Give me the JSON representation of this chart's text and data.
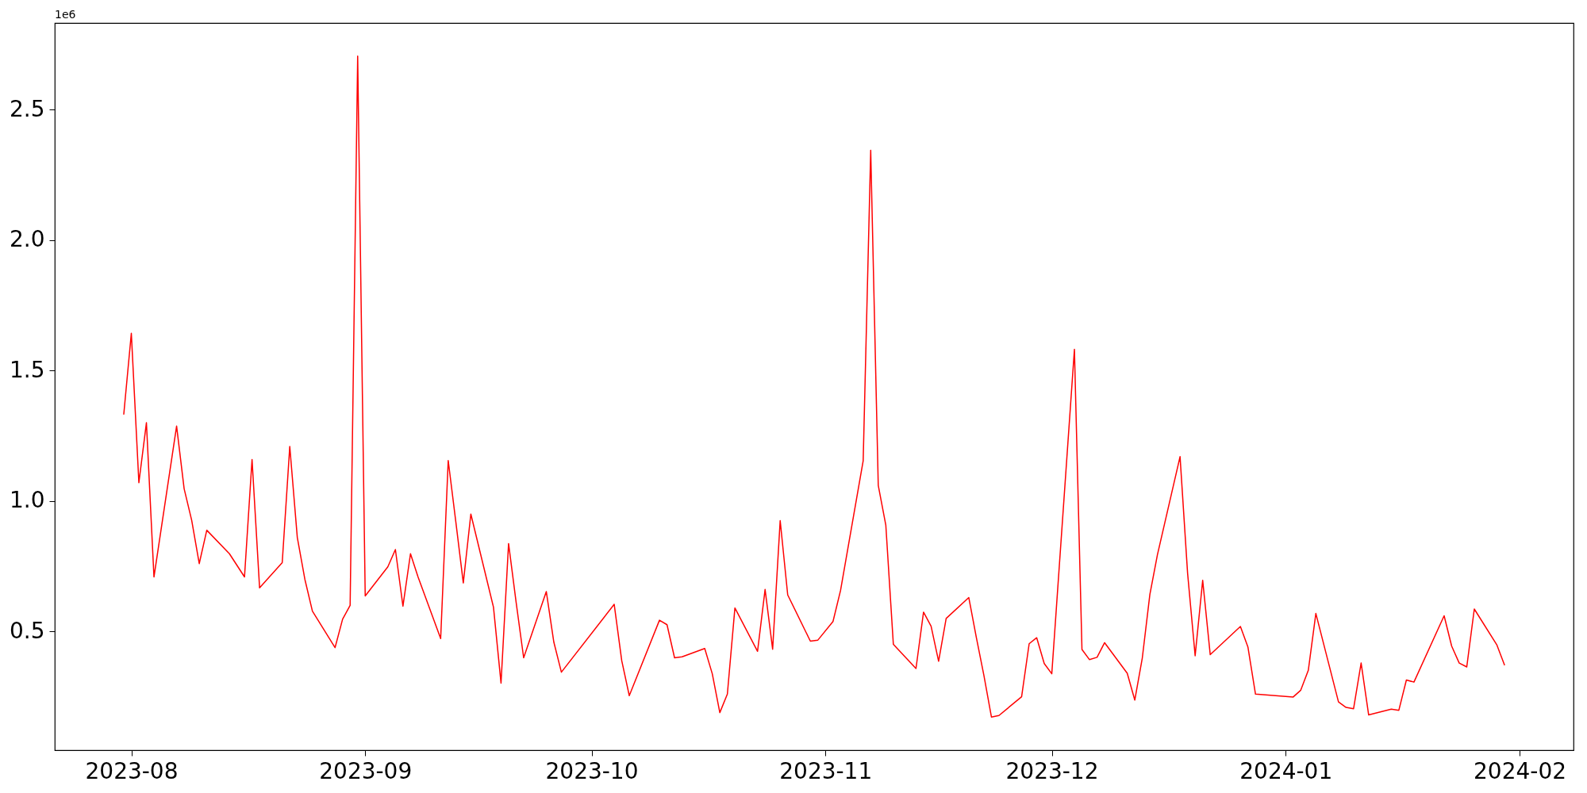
{
  "chart_data": {
    "type": "line",
    "annotations": [
      "1e6"
    ],
    "x": [
      "2023-07-31",
      "2023-08-01",
      "2023-08-02",
      "2023-08-03",
      "2023-08-04",
      "2023-08-07",
      "2023-08-08",
      "2023-08-09",
      "2023-08-10",
      "2023-08-11",
      "2023-08-14",
      "2023-08-16",
      "2023-08-17",
      "2023-08-18",
      "2023-08-21",
      "2023-08-22",
      "2023-08-23",
      "2023-08-24",
      "2023-08-25",
      "2023-08-28",
      "2023-08-29",
      "2023-08-30",
      "2023-08-31",
      "2023-09-01",
      "2023-09-04",
      "2023-09-05",
      "2023-09-06",
      "2023-09-07",
      "2023-09-08",
      "2023-09-11",
      "2023-09-12",
      "2023-09-13",
      "2023-09-14",
      "2023-09-15",
      "2023-09-18",
      "2023-09-19",
      "2023-09-20",
      "2023-09-21",
      "2023-09-22",
      "2023-09-25",
      "2023-09-26",
      "2023-09-27",
      "2023-10-04",
      "2023-10-05",
      "2023-10-06",
      "2023-10-10",
      "2023-10-11",
      "2023-10-12",
      "2023-10-13",
      "2023-10-16",
      "2023-10-17",
      "2023-10-18",
      "2023-10-19",
      "2023-10-20",
      "2023-10-23",
      "2023-10-24",
      "2023-10-25",
      "2023-10-26",
      "2023-10-27",
      "2023-10-30",
      "2023-10-31",
      "2023-11-02",
      "2023-11-03",
      "2023-11-06",
      "2023-11-07",
      "2023-11-08",
      "2023-11-09",
      "2023-11-10",
      "2023-11-13",
      "2023-11-14",
      "2023-11-15",
      "2023-11-16",
      "2023-11-17",
      "2023-11-20",
      "2023-11-21",
      "2023-11-22",
      "2023-11-23",
      "2023-11-24",
      "2023-11-27",
      "2023-11-28",
      "2023-11-29",
      "2023-11-30",
      "2023-12-01",
      "2023-12-04",
      "2023-12-05",
      "2023-12-06",
      "2023-12-07",
      "2023-12-08",
      "2023-12-11",
      "2023-12-12",
      "2023-12-13",
      "2023-12-14",
      "2023-12-15",
      "2023-12-18",
      "2023-12-19",
      "2023-12-20",
      "2023-12-21",
      "2023-12-22",
      "2023-12-26",
      "2023-12-27",
      "2023-12-28",
      "2024-01-02",
      "2024-01-03",
      "2024-01-04",
      "2024-01-05",
      "2024-01-08",
      "2024-01-09",
      "2024-01-10",
      "2024-01-11",
      "2024-01-12",
      "2024-01-15",
      "2024-01-16",
      "2024-01-17",
      "2024-01-18",
      "2024-01-22",
      "2024-01-23",
      "2024-01-24",
      "2024-01-25",
      "2024-01-26",
      "2024-01-29",
      "2024-01-30"
    ],
    "series": [
      {
        "color": "#ff0000",
        "values": [
          1.333,
          1.643,
          1.07,
          1.3,
          0.709,
          1.287,
          1.047,
          0.926,
          0.76,
          0.888,
          0.798,
          0.709,
          1.159,
          0.667,
          0.764,
          1.209,
          0.86,
          0.7,
          0.578,
          0.438,
          0.547,
          0.6,
          2.705,
          0.636,
          0.748,
          0.814,
          0.597,
          0.798,
          0.709,
          0.473,
          1.155,
          0.922,
          0.686,
          0.95,
          0.593,
          0.302,
          0.837,
          0.612,
          0.399,
          0.653,
          0.459,
          0.344,
          0.604,
          0.388,
          0.254,
          0.543,
          0.526,
          0.399,
          0.403,
          0.435,
          0.338,
          0.189,
          0.26,
          0.59,
          0.424,
          0.661,
          0.432,
          0.925,
          0.64,
          0.463,
          0.467,
          0.538,
          0.657,
          1.154,
          2.344,
          1.06,
          0.908,
          0.451,
          0.358,
          0.574,
          0.52,
          0.386,
          0.55,
          0.63,
          0.477,
          0.332,
          0.172,
          0.178,
          0.25,
          0.453,
          0.476,
          0.377,
          0.338,
          1.581,
          0.431,
          0.392,
          0.401,
          0.457,
          0.34,
          0.237,
          0.399,
          0.642,
          0.794,
          1.17,
          0.723,
          0.407,
          0.696,
          0.411,
          0.519,
          0.44,
          0.26,
          0.249,
          0.275,
          0.351,
          0.569,
          0.23,
          0.209,
          0.204,
          0.379,
          0.18,
          0.202,
          0.198,
          0.314,
          0.306,
          0.56,
          0.444,
          0.379,
          0.364,
          0.586,
          0.448,
          0.372
        ]
      }
    ],
    "xlim": [
      "2023-07-21T20:24",
      "2024-02-08T03:36"
    ],
    "xticks": [
      "2023-08",
      "2023-09",
      "2023-10",
      "2023-11",
      "2023-12",
      "2024-01",
      "2024-02"
    ],
    "ylim": [
      0.045,
      2.832
    ],
    "yticks": [
      {
        "value": 0.5,
        "label": "0.5"
      },
      {
        "value": 1,
        "label": "1.0"
      },
      {
        "value": 1.5,
        "label": "1.5"
      },
      {
        "value": 2,
        "label": "2.0"
      },
      {
        "value": 2.5,
        "label": "2.5"
      }
    ],
    "grid": false
  }
}
